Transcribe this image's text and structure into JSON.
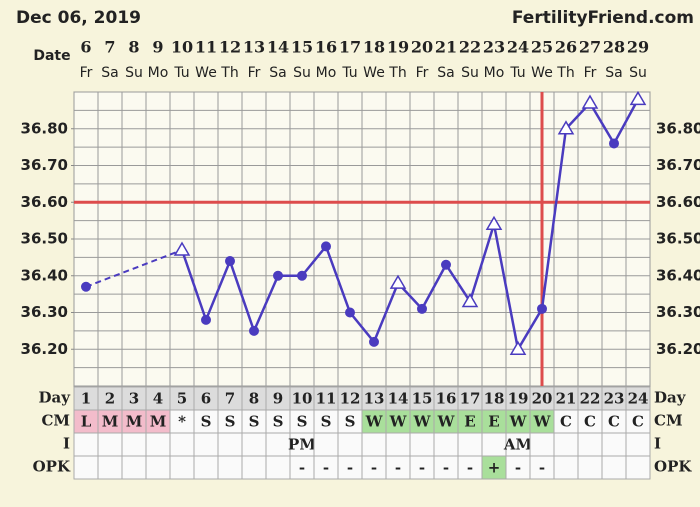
{
  "chart_data": {
    "type": "line",
    "title": "Dec 06, 2019",
    "source": "FertilityFriend.com",
    "x_label": "Date",
    "dates": [
      6,
      7,
      8,
      9,
      10,
      11,
      12,
      13,
      14,
      15,
      16,
      17,
      18,
      19,
      20,
      21,
      22,
      23,
      24,
      25,
      26,
      27,
      28,
      29
    ],
    "weekdays": [
      "Fr",
      "Sa",
      "Su",
      "Mo",
      "Tu",
      "We",
      "Th",
      "Fr",
      "Sa",
      "Su",
      "Mo",
      "Tu",
      "We",
      "Th",
      "Fr",
      "Sa",
      "Su",
      "Mo",
      "Tu",
      "We",
      "Th",
      "Fr",
      "Sa",
      "Su"
    ],
    "values": [
      36.37,
      null,
      null,
      null,
      36.47,
      36.28,
      36.44,
      36.25,
      36.4,
      36.4,
      36.48,
      36.3,
      36.22,
      36.38,
      36.31,
      36.43,
      36.33,
      36.54,
      36.2,
      36.31,
      36.8,
      36.87,
      36.76,
      36.88
    ],
    "markers": [
      "circle",
      null,
      null,
      null,
      "triangle",
      "circle",
      "circle",
      "circle",
      "circle",
      "circle",
      "circle",
      "circle",
      "circle",
      "triangle",
      "circle",
      "circle",
      "triangle",
      "triangle",
      "triangle",
      "circle",
      "triangle",
      "triangle",
      "circle",
      "triangle"
    ],
    "color": "#4a3bbf",
    "ylim": [
      36.1,
      36.9
    ],
    "yticks": [
      {
        "value": 36.2,
        "label": "36.20"
      },
      {
        "value": 36.3,
        "label": "36.30"
      },
      {
        "value": 36.4,
        "label": "36.40"
      },
      {
        "value": 36.5,
        "label": "36.50"
      },
      {
        "value": 36.6,
        "label": "36.60"
      },
      {
        "value": 36.7,
        "label": "36.70"
      },
      {
        "value": 36.8,
        "label": "36.80"
      }
    ],
    "ygrid": [
      36.1,
      36.15,
      36.2,
      36.25,
      36.3,
      36.35,
      36.4,
      36.45,
      36.5,
      36.55,
      36.6,
      36.65,
      36.7,
      36.75,
      36.8,
      36.85,
      36.9
    ],
    "coverline": 36.6,
    "ovulation_day": 20,
    "line_color": "#dd4c4c",
    "table": [
      {
        "label": "Day",
        "cells": [
          1,
          2,
          3,
          4,
          5,
          6,
          7,
          8,
          9,
          10,
          11,
          12,
          13,
          14,
          15,
          16,
          17,
          18,
          19,
          20,
          21,
          22,
          23,
          24
        ],
        "colors": [
          "#dcdcdc",
          "#dcdcdc",
          "#dcdcdc",
          "#dcdcdc",
          "#dcdcdc",
          "#dcdcdc",
          "#dcdcdc",
          "#dcdcdc",
          "#dcdcdc",
          "#dcdcdc",
          "#dcdcdc",
          "#dcdcdc",
          "#dcdcdc",
          "#dcdcdc",
          "#dcdcdc",
          "#dcdcdc",
          "#dcdcdc",
          "#dcdcdc",
          "#dcdcdc",
          "#dcdcdc",
          "#dcdcdc",
          "#dcdcdc",
          "#dcdcdc",
          "#dcdcdc"
        ]
      },
      {
        "label": "CM",
        "cells": [
          "L",
          "M",
          "M",
          "M",
          "*",
          "S",
          "S",
          "S",
          "S",
          "S",
          "S",
          "S",
          "W",
          "W",
          "W",
          "W",
          "E",
          "E",
          "W",
          "W",
          "C",
          "C",
          "C",
          "C"
        ],
        "colors": [
          "#f3bccb",
          "#f3bccb",
          "#f3bccb",
          "#f3bccb",
          null,
          null,
          null,
          null,
          null,
          null,
          null,
          null,
          "#a9df9b",
          "#a9df9b",
          "#a9df9b",
          "#a9df9b",
          "#a9df9b",
          "#a9df9b",
          "#a9df9b",
          "#a9df9b",
          null,
          null,
          null,
          null
        ]
      },
      {
        "label": "I",
        "cells": [
          null,
          null,
          null,
          null,
          null,
          null,
          null,
          null,
          null,
          "PM",
          null,
          null,
          null,
          null,
          null,
          null,
          null,
          null,
          "AM",
          null,
          null,
          null,
          null,
          null
        ],
        "colors": [
          null,
          null,
          null,
          null,
          null,
          null,
          null,
          null,
          null,
          null,
          null,
          null,
          null,
          null,
          null,
          null,
          null,
          null,
          null,
          null,
          null,
          null,
          null,
          null
        ]
      },
      {
        "label": "OPK",
        "cells": [
          null,
          null,
          null,
          null,
          null,
          null,
          null,
          null,
          null,
          "-",
          "-",
          "-",
          "-",
          "-",
          "-",
          "-",
          "-",
          "+",
          "-",
          "-",
          null,
          null,
          null,
          null
        ],
        "colors": [
          null,
          null,
          null,
          null,
          null,
          null,
          null,
          null,
          null,
          null,
          null,
          null,
          null,
          null,
          null,
          null,
          null,
          "#a9df9b",
          null,
          null,
          null,
          null,
          null,
          null
        ]
      }
    ]
  }
}
